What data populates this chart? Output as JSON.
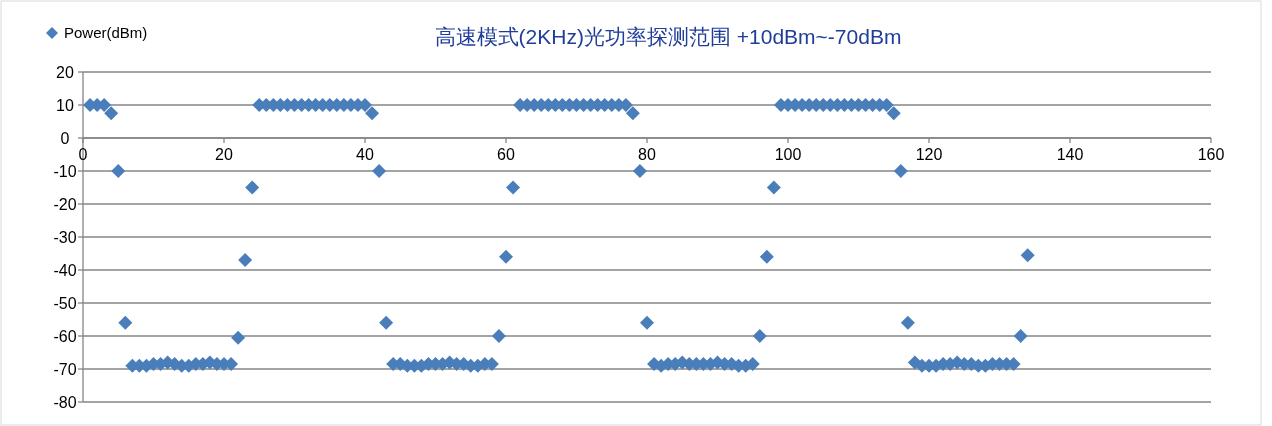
{
  "chart_data": {
    "type": "scatter",
    "title": "高速模式(2KHz)光功率探测范围 +10dBm~-70dBm",
    "marker": "diamond",
    "grid": "y",
    "legend": "top left",
    "xlim": [
      0,
      160
    ],
    "ylim": [
      -80,
      20
    ],
    "xticks": [
      0,
      20,
      40,
      60,
      80,
      100,
      120,
      140,
      160
    ],
    "yticks": [
      -80,
      -70,
      -60,
      -50,
      -40,
      -30,
      -20,
      -10,
      0,
      10,
      20
    ],
    "x": [
      1,
      2,
      3,
      4,
      5,
      6,
      7,
      8,
      9,
      10,
      11,
      12,
      13,
      14,
      15,
      16,
      17,
      18,
      19,
      20,
      21,
      22,
      23,
      24,
      25,
      26,
      27,
      28,
      29,
      30,
      31,
      32,
      33,
      34,
      35,
      36,
      37,
      38,
      39,
      40,
      41,
      42,
      43,
      44,
      45,
      46,
      47,
      48,
      49,
      50,
      51,
      52,
      53,
      54,
      55,
      56,
      57,
      58,
      59,
      60,
      61,
      62,
      63,
      64,
      65,
      66,
      67,
      68,
      69,
      70,
      71,
      72,
      73,
      74,
      75,
      76,
      77,
      78,
      79,
      80,
      81,
      82,
      83,
      84,
      85,
      86,
      87,
      88,
      89,
      90,
      91,
      92,
      93,
      94,
      95,
      96,
      97,
      98,
      99,
      100,
      101,
      102,
      103,
      104,
      105,
      106,
      107,
      108,
      109,
      110,
      111,
      112,
      113,
      114,
      115,
      116,
      117,
      118,
      119,
      120,
      121,
      122,
      123,
      124,
      125,
      126,
      127,
      128,
      129,
      130,
      131,
      132,
      133,
      134
    ],
    "series": [
      {
        "name": "Power(dBm)",
        "color": "#4a7ebb",
        "values": [
          10,
          10,
          10,
          7.5,
          -10,
          -56,
          -69,
          -69,
          -69,
          -68.5,
          -68.5,
          -68,
          -68.5,
          -69,
          -69,
          -68.5,
          -68.5,
          -68,
          -68.5,
          -68.5,
          -68.5,
          -60.5,
          -37,
          -15,
          10,
          10,
          10,
          10,
          10,
          10,
          10,
          10,
          10,
          10,
          10,
          10,
          10,
          10,
          10,
          10,
          7.5,
          -10,
          -56,
          -68.5,
          -68.5,
          -69,
          -69,
          -69,
          -68.5,
          -68.5,
          -68.5,
          -68,
          -68.5,
          -68.5,
          -69,
          -69,
          -68.5,
          -68.5,
          -60,
          -36,
          -15,
          10,
          10,
          10,
          10,
          10,
          10,
          10,
          10,
          10,
          10,
          10,
          10,
          10,
          10,
          10,
          10,
          7.5,
          -10,
          -56,
          -68.5,
          -69,
          -68.5,
          -68.5,
          -68,
          -68.5,
          -68.5,
          -68.5,
          -68.5,
          -68,
          -68.5,
          -68.5,
          -69,
          -69,
          -68.5,
          -60,
          -36,
          -15,
          10,
          10,
          10,
          10,
          10,
          10,
          10,
          10,
          10,
          10,
          10,
          10,
          10,
          10,
          10,
          10,
          7.5,
          -10,
          -56,
          -68,
          -69,
          -69,
          -69,
          -68.5,
          -68.5,
          -68,
          -68.5,
          -68.5,
          -69,
          -69,
          -68.5,
          -68.5,
          -68.5,
          -68.5,
          -60,
          -35.5
        ]
      }
    ]
  }
}
